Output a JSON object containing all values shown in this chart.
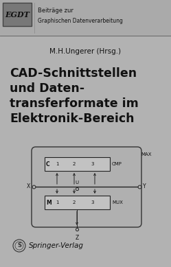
{
  "bg_color": "#b2b2b2",
  "title_lines": [
    "CAD-Schnittstellen",
    "und Daten-",
    "transferformate im",
    "Elektronik-Bereich"
  ],
  "author": "M.H.Ungerer (Hrsg.)",
  "header_text1": "Beiträge zur",
  "header_text2": "Graphischen Datenverarbeitung",
  "publisher": "Springer-Verlag",
  "title_color": "#111111",
  "text_color": "#111111"
}
